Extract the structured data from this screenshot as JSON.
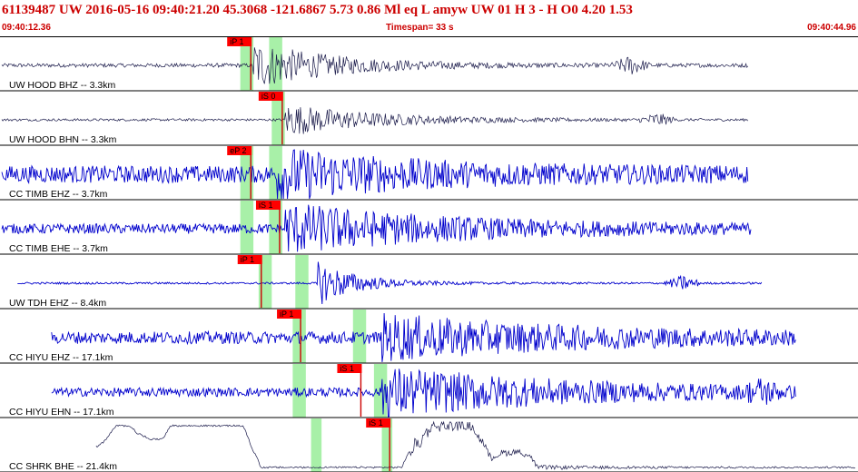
{
  "header": {
    "title": "61139487 UW 2016-05-16 09:40:21.20   45.3068 -121.6867   5.73  0.86 Ml   eq   L amyw      UW 01   H   3   -   H O0      4.20  1.53",
    "start_time": "09:40:12.36",
    "timespan": "Timespan=  33 s",
    "end_time": "09:40:44.96"
  },
  "colors": {
    "bg": "#ffffff",
    "trace_black": "#1a1a4a",
    "trace_blue": "#0000cc",
    "pick_flag": "#ff0000",
    "pick_line": "#cc0000",
    "window": "#a8f0a8",
    "separator": "#000000",
    "header_text": "#cc0000"
  },
  "view": {
    "start_seconds": 0,
    "end_seconds": 32.6
  },
  "channels": [
    {
      "label": "UW HOOD BHZ -- 3.3km",
      "color": "black",
      "pick": {
        "label": "iP 1",
        "t": 9.5
      },
      "windows": [
        {
          "t0": 9.1,
          "t1": 9.6
        },
        {
          "t0": 10.2,
          "t1": 10.7
        }
      ],
      "signal": {
        "start": 0.0,
        "end": 28.5,
        "noise": 0.08,
        "burst": 9.6,
        "burst_amp": 0.95,
        "decay": 3.0,
        "late": 24.0,
        "late_amp": 0.35,
        "wander": 0.0,
        "dim": true
      }
    },
    {
      "label": "UW HOOD BHN -- 3.3km",
      "color": "black",
      "pick": {
        "label": "iS 0",
        "t": 10.7
      },
      "windows": [
        {
          "t0": 10.3,
          "t1": 10.8
        }
      ],
      "signal": {
        "start": 0.0,
        "end": 28.5,
        "noise": 0.05,
        "burst": 10.8,
        "burst_amp": 0.65,
        "decay": 3.5,
        "late": 25.0,
        "late_amp": 0.25,
        "wander": 0.0,
        "dim": true
      }
    },
    {
      "label": "CC TIMB EHZ -- 3.7km",
      "color": "blue",
      "pick": {
        "label": "eP 2",
        "t": 9.5
      },
      "windows": [
        {
          "t0": 9.1,
          "t1": 9.6
        },
        {
          "t0": 10.2,
          "t1": 10.7
        }
      ],
      "signal": {
        "start": 0.0,
        "end": 28.5,
        "noise": 0.35,
        "burst": 10.5,
        "burst_amp": 0.9,
        "decay": 5.0,
        "late": 0,
        "late_amp": 0,
        "wander": 0.0,
        "dim": false
      }
    },
    {
      "label": "CC TIMB EHE -- 3.7km",
      "color": "blue",
      "pick": {
        "label": "iS 1",
        "t": 10.6
      },
      "windows": [
        {
          "t0": 9.1,
          "t1": 9.6
        },
        {
          "t0": 10.2,
          "t1": 10.7
        }
      ],
      "signal": {
        "start": 0.0,
        "end": 28.6,
        "noise": 0.2,
        "burst": 10.8,
        "burst_amp": 0.95,
        "decay": 6.0,
        "late": 0,
        "late_amp": 0,
        "wander": 0.0,
        "dim": false
      }
    },
    {
      "label": "UW TDH EHZ -- 8.4km",
      "color": "blue",
      "pick": {
        "label": "iP 1",
        "t": 9.9
      },
      "windows": [
        {
          "t0": 9.8,
          "t1": 10.3
        },
        {
          "t0": 11.2,
          "t1": 11.7
        }
      ],
      "signal": {
        "start": 0.6,
        "end": 29.0,
        "noise": 0.04,
        "burst": 12.0,
        "burst_amp": 0.95,
        "decay": 1.5,
        "late": 26.0,
        "late_amp": 0.3,
        "wander": 0.0,
        "dim": false
      }
    },
    {
      "label": "CC HIYU EHZ -- 17.1km",
      "color": "blue",
      "pick": {
        "label": "iP 1",
        "t": 11.4
      },
      "windows": [
        {
          "t0": 11.1,
          "t1": 11.6
        },
        {
          "t0": 13.4,
          "t1": 13.9
        }
      ],
      "signal": {
        "start": 1.9,
        "end": 30.3,
        "noise": 0.25,
        "burst": 14.5,
        "burst_amp": 0.8,
        "decay": 7.0,
        "late": 0,
        "late_amp": 0,
        "wander": 0.0,
        "dim": false
      }
    },
    {
      "label": "CC HIYU EHN -- 17.1km",
      "color": "blue",
      "pick": {
        "label": "iS 1",
        "t": 13.7
      },
      "windows": [
        {
          "t0": 11.1,
          "t1": 11.6
        },
        {
          "t0": 14.2,
          "t1": 14.7
        }
      ],
      "signal": {
        "start": 1.9,
        "end": 30.3,
        "noise": 0.18,
        "burst": 14.5,
        "burst_amp": 0.95,
        "decay": 7.0,
        "late": 29.0,
        "late_amp": 0.4,
        "wander": 0.0,
        "dim": false
      }
    },
    {
      "label": "CC SHRK BHE -- 21.4km",
      "color": "black",
      "pick": {
        "label": "iS 1",
        "t": 14.8
      },
      "windows": [
        {
          "t0": 11.8,
          "t1": 12.2
        },
        {
          "t0": 14.5,
          "t1": 14.9
        }
      ],
      "signal": {
        "start": 3.6,
        "end": 32.6,
        "noise": 0.06,
        "burst": 15.6,
        "burst_amp": 0.5,
        "decay": 3.0,
        "late": 0,
        "late_amp": 0,
        "wander": 0.85,
        "dim": false
      }
    }
  ]
}
